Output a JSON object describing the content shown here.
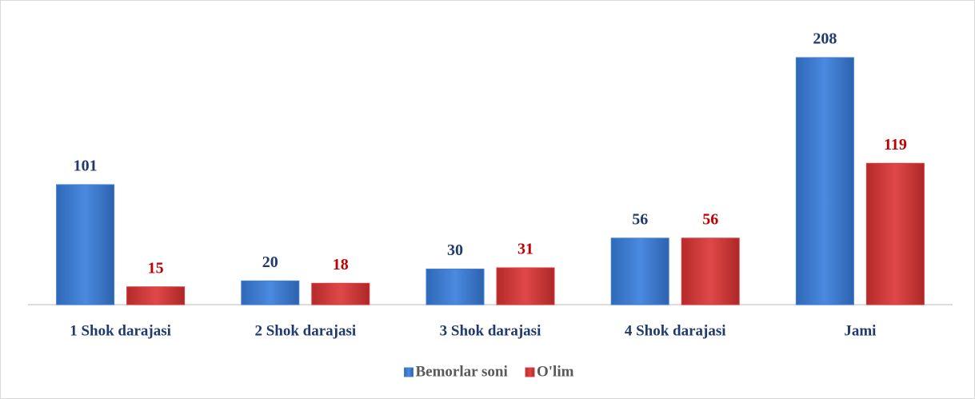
{
  "chart_data": {
    "type": "bar",
    "categories": [
      "1 Shok darajasi",
      "2 Shok darajasi",
      "3 Shok darajasi",
      "4 Shok darajasi",
      "Jami"
    ],
    "series": [
      {
        "name": "Bemorlar soni",
        "color": "#3f7fd6",
        "label_color": "#1f3a6e",
        "values": [
          101,
          20,
          30,
          56,
          208
        ]
      },
      {
        "name": "O'lim",
        "color": "#d63c3c",
        "label_color": "#c00000",
        "values": [
          15,
          18,
          31,
          56,
          119
        ]
      }
    ],
    "legend": "bottom"
  }
}
